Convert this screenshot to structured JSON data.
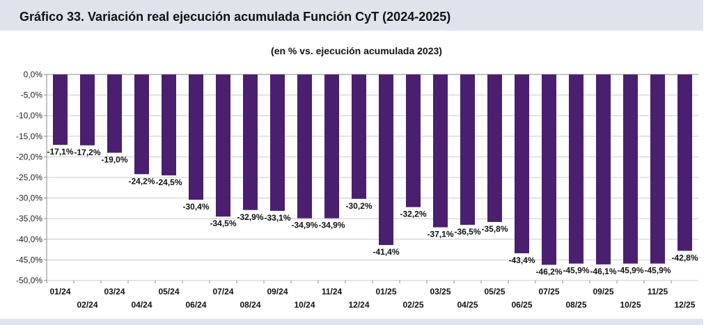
{
  "header": {
    "title": "Gráfico 33. Variación real ejecución acumulada Función CyT (2024-2025)"
  },
  "colors": {
    "bar": "#4b1f6f",
    "header_bg": "#dfe3ec",
    "grid": "#c8c8c8"
  },
  "chart_data": {
    "type": "bar",
    "title": "Gráfico 33. Variación real ejecución acumulada Función CyT (2024-2025)",
    "subtitle": "(en % vs. ejecución acumulada 2023)",
    "xlabel": "",
    "ylabel": "",
    "ylim": [
      -50,
      0
    ],
    "yticks": [
      0,
      -5,
      -10,
      -15,
      -20,
      -25,
      -30,
      -35,
      -40,
      -45,
      -50
    ],
    "ytick_labels": [
      "0,0%",
      "-5,0%",
      "-10,0%",
      "-15,0%",
      "-20,0%",
      "-25,0%",
      "-30,0%",
      "-35,0%",
      "-40,0%",
      "-45,0%",
      "-50,0%"
    ],
    "grid": true,
    "legend": "none",
    "categories": [
      "01/24",
      "02/24",
      "03/24",
      "04/24",
      "05/24",
      "06/24",
      "07/24",
      "08/24",
      "09/24",
      "10/24",
      "11/24",
      "12/24",
      "01/25",
      "02/25",
      "03/25",
      "04/25",
      "05/25",
      "06/25",
      "07/25",
      "08/25",
      "09/25",
      "10/25",
      "11/25",
      "12/25"
    ],
    "values": [
      -17.1,
      -17.2,
      -19.0,
      -24.2,
      -24.5,
      -30.4,
      -34.5,
      -32.9,
      -33.1,
      -34.9,
      -34.9,
      -30.2,
      -41.4,
      -32.2,
      -37.1,
      -36.5,
      -35.8,
      -43.4,
      -46.2,
      -45.9,
      -46.1,
      -45.9,
      -45.9,
      -42.8
    ],
    "data_labels": [
      "-17,1%",
      "-17,2%",
      "-19,0%",
      "-24,2%",
      "-24,5%",
      "-30,4%",
      "-34,5%",
      "-32,9%",
      "-33,1%",
      "-34,9%",
      "-34,9%",
      "-30,2%",
      "-41,4%",
      "-32,2%",
      "-37,1%",
      "-36,5%",
      "-35,8%",
      "-43,4%",
      "-46,2%",
      "-45,9%",
      "-46,1%",
      "-45,9%",
      "-45,9%",
      "-42,8%"
    ]
  }
}
